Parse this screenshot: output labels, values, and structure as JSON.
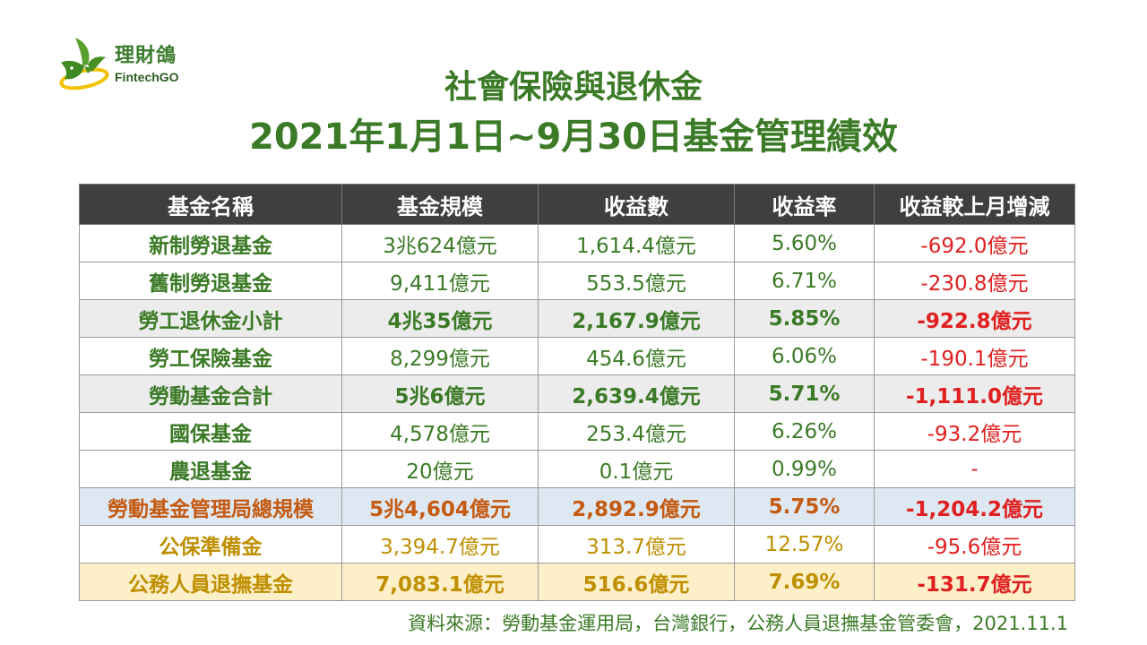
{
  "logo": {
    "name_cn": "理財鴿",
    "name_en": "FintechGO"
  },
  "title": {
    "line1": "社會保險與退休金",
    "line2": "2021年1月1日~9月30日基金管理績效"
  },
  "table": {
    "headers": [
      "基金名稱",
      "基金規模",
      "收益數",
      "收益率",
      "收益較上月增減"
    ],
    "rows": [
      [
        "新制勞退基金",
        "3兆624億元",
        "1,614.4億元",
        "5.60%",
        "-692.0億元"
      ],
      [
        "舊制勞退基金",
        "9,411億元",
        "553.5億元",
        "6.71%",
        "-230.8億元"
      ],
      [
        "勞工退休金小計",
        "4兆35億元",
        "2,167.9億元",
        "5.85%",
        "-922.8億元"
      ],
      [
        "勞工保險基金",
        "8,299億元",
        "454.6億元",
        "6.06%",
        "-190.1億元"
      ],
      [
        "勞動基金合計",
        "5兆6億元",
        "2,639.4億元",
        "5.71%",
        "-1,111.0億元"
      ],
      [
        "國保基金",
        "4,578億元",
        "253.4億元",
        "6.26%",
        "-93.2億元"
      ],
      [
        "農退基金",
        "20億元",
        "0.1億元",
        "0.99%",
        "-"
      ],
      [
        "勞動基金管理局總規模",
        "5兆4,604億元",
        "2,892.9億元",
        "5.75%",
        "-1,204.2億元"
      ],
      [
        "公保準備金",
        "3,394.7億元",
        "313.7億元",
        "12.57%",
        "-95.6億元"
      ],
      [
        "公務人員退撫基金",
        "7,083.1億元",
        "516.6億元",
        "7.69%",
        "-131.7億元"
      ]
    ]
  },
  "source": "資料來源：勞動基金運用局，台灣銀行，公務人員退撫基金管委會，2021.11.1",
  "colors": {
    "title_green": "#3b7a26",
    "header_bg": "#3f3f3f",
    "negative_red": "#e02020",
    "orange": "#c55a11",
    "gold": "#bf8f00",
    "subtotal_bg": "#ececec",
    "blue_row_bg": "#dde8f3",
    "yellow_row_bg": "#fdf0c9"
  }
}
